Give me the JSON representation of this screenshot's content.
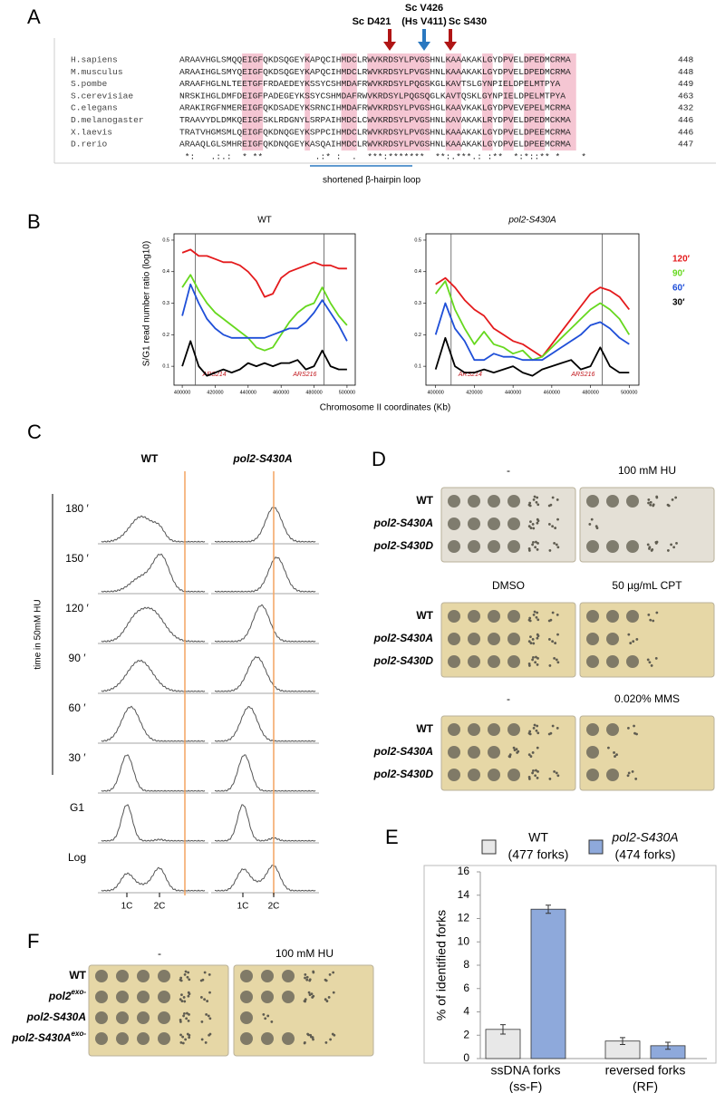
{
  "panel_a": {
    "label": "A",
    "annotations": [
      {
        "text": "Sc D421"
      },
      {
        "lines": [
          "Sc V426",
          "(Hs V411)"
        ]
      },
      {
        "text": "Sc S430"
      }
    ],
    "alignment": [
      {
        "species": "H.sapiens",
        "sequence": "ARAAVHGLSMQQEIGFQKDSQGEYKAPQCIHMDCLRWVKRDSYLPVGSHNLKAAAKAKLGYDPVELDPEDMCRMA",
        "end": 448
      },
      {
        "species": "M.musculus",
        "sequence": "ARAAIHGLSMYQEIGFQKDSQGEYKAPQCIHMDCLRWVKRDSYLPVGSHNLKAAAKAKLGYDPVELDPEDMCRMA",
        "end": 448
      },
      {
        "species": "S.pombe",
        "sequence": "ARAAFHGLNLTEETGFFRDAEDEYKSSYCSHMDAFRWVKRDSYLPQGSKGLKAVTSLGYNPIELDPELMTPYA",
        "end": 449
      },
      {
        "species": "S.cerevisiae",
        "sequence": "NRSKIHGLDMFDEIGFPADEGEYKSSYCSHMDAFRWVKRDSYLPQGSQGLKAVTQSKLGYNPIELDPELMTPYA",
        "end": 463
      },
      {
        "species": "C.elegans",
        "sequence": "ARAKIRGFNMEREIGFQKDSADEYKSRNCIHMDAFRWVKRDSYLPVGSHGLKAAVKAKLGYDPVEVEPELMCRMA",
        "end": 432
      },
      {
        "species": "D.melanogaster",
        "sequence": "TRAAVYDLDMKQEIGFSKLRDGNYLSRPAIHMDCLCWVKRDSYLPVGSHNLKAVAKAKLRYDPVELDPEDMCKMA",
        "end": 446
      },
      {
        "species": "X.laevis",
        "sequence": "TRATVHGMSMLQEIGFQKDNQGEYKSPPCIHMDCLRWVKRDSYLPVGSHNLKAAAKAKLGYDPVELDPEEMCRMA",
        "end": 446
      },
      {
        "species": "D.rerio",
        "sequence": "ARAAQLGLSMHREIGFQKDNQGEYKASQAIHMDCLRWVKRDSYLPVGSHNLKAAAKAKLGYDPVELDPEEMCRMA",
        "end": 447
      }
    ],
    "conservation": " *:   .:.:  * **          .:* :  .  ***:*******  **:.***.: :**  *:*::** *    *",
    "loop_label": "shortened  β-hairpin loop"
  },
  "panel_b": {
    "label": "B",
    "y_label": "S/G1 read number ratio (log10)",
    "x_label": "Chromosome II coordinates (Kb)",
    "x": [
      400000,
      405000,
      410000,
      415000,
      420000,
      425000,
      430000,
      435000,
      440000,
      445000,
      450000,
      455000,
      460000,
      465000,
      470000,
      475000,
      480000,
      485000,
      490000,
      495000,
      500000
    ],
    "xlim": [
      395000,
      505000
    ],
    "xticks": [
      400000,
      420000,
      440000,
      460000,
      480000,
      500000
    ],
    "ylim": [
      0.04,
      0.52
    ],
    "yticks": [
      0.1,
      0.2,
      0.3,
      0.4,
      0.5
    ],
    "origins": [
      {
        "x": 408000,
        "label": "ARS214"
      },
      {
        "x": 486000,
        "label": "ARS216"
      }
    ],
    "legend": [
      {
        "name": "120′",
        "color": "#e41a1c"
      },
      {
        "name": "90′",
        "color": "#66d81e"
      },
      {
        "name": "60′",
        "color": "#1f4fd8"
      },
      {
        "name": "30′",
        "color": "#000000"
      }
    ],
    "charts": [
      {
        "type": "line",
        "title": "WT",
        "series": [
          {
            "values": [
              0.46,
              0.47,
              0.45,
              0.45,
              0.44,
              0.43,
              0.43,
              0.42,
              0.4,
              0.37,
              0.32,
              0.33,
              0.38,
              0.4,
              0.41,
              0.42,
              0.43,
              0.42,
              0.42,
              0.41,
              0.41
            ]
          },
          {
            "values": [
              0.35,
              0.39,
              0.34,
              0.3,
              0.27,
              0.25,
              0.23,
              0.21,
              0.19,
              0.16,
              0.15,
              0.16,
              0.2,
              0.24,
              0.27,
              0.29,
              0.3,
              0.35,
              0.3,
              0.26,
              0.23
            ]
          },
          {
            "values": [
              0.26,
              0.36,
              0.3,
              0.25,
              0.22,
              0.2,
              0.19,
              0.19,
              0.19,
              0.19,
              0.19,
              0.2,
              0.21,
              0.22,
              0.22,
              0.24,
              0.27,
              0.31,
              0.27,
              0.23,
              0.18
            ]
          },
          {
            "values": [
              0.1,
              0.18,
              0.1,
              0.07,
              0.08,
              0.09,
              0.08,
              0.09,
              0.11,
              0.1,
              0.11,
              0.1,
              0.11,
              0.11,
              0.12,
              0.09,
              0.1,
              0.15,
              0.1,
              0.09,
              0.09
            ]
          }
        ]
      },
      {
        "type": "line",
        "title": "pol2-S430A",
        "series": [
          {
            "values": [
              0.36,
              0.38,
              0.35,
              0.31,
              0.28,
              0.26,
              0.22,
              0.2,
              0.18,
              0.17,
              0.15,
              0.13,
              0.17,
              0.21,
              0.25,
              0.29,
              0.33,
              0.35,
              0.34,
              0.32,
              0.28
            ]
          },
          {
            "values": [
              0.33,
              0.37,
              0.28,
              0.22,
              0.17,
              0.21,
              0.17,
              0.16,
              0.14,
              0.15,
              0.12,
              0.13,
              0.16,
              0.19,
              0.22,
              0.25,
              0.28,
              0.3,
              0.28,
              0.25,
              0.2
            ]
          },
          {
            "values": [
              0.2,
              0.3,
              0.22,
              0.18,
              0.12,
              0.12,
              0.14,
              0.13,
              0.13,
              0.12,
              0.12,
              0.12,
              0.14,
              0.16,
              0.18,
              0.2,
              0.23,
              0.24,
              0.22,
              0.19,
              0.17
            ]
          },
          {
            "values": [
              0.09,
              0.19,
              0.1,
              0.08,
              0.08,
              0.09,
              0.08,
              0.09,
              0.1,
              0.08,
              0.07,
              0.09,
              0.1,
              0.11,
              0.12,
              0.09,
              0.1,
              0.16,
              0.1,
              0.08,
              0.08
            ]
          }
        ]
      }
    ]
  },
  "panel_c": {
    "label": "C",
    "columns": [
      "WT",
      "pol2-S430A"
    ],
    "rows": [
      "180 ′",
      "150 ′",
      "120 ′",
      "90 ′",
      "60 ′",
      "30 ′",
      "G1",
      "Log"
    ],
    "axis_label": "time in 50mM HU",
    "dna_content": [
      "1C",
      "2C"
    ]
  },
  "panel_d": {
    "label": "D",
    "strains": [
      "WT",
      "pol2-S430A",
      "pol2-S430D"
    ],
    "conditions": [
      [
        "-",
        "100 mM HU"
      ],
      [
        "DMSO",
        "50 µg/mL CPT"
      ],
      [
        "-",
        "0.020% MMS"
      ]
    ]
  },
  "panel_e": {
    "label": "E",
    "type": "bar",
    "y_label": "% of identified forks",
    "categories": [
      [
        "ssDNA forks",
        "(ss-F)"
      ],
      [
        "reversed forks",
        "(RF)"
      ]
    ],
    "series": [
      {
        "name": "WT",
        "subtitle": "(477 forks)",
        "color": "#e8e8e8",
        "values": [
          2.5,
          1.5
        ],
        "errors": [
          0.4,
          0.3
        ]
      },
      {
        "name": "pol2-S430A",
        "subtitle": "(474 forks)",
        "color": "#8ea9db",
        "values": [
          12.8,
          1.1
        ],
        "errors": [
          0.35,
          0.3
        ]
      }
    ],
    "ylim": [
      0,
      16
    ],
    "yticks": [
      0,
      2,
      4,
      6,
      8,
      10,
      12,
      14,
      16
    ]
  },
  "panel_f": {
    "label": "F",
    "strains": [
      {
        "text": "WT"
      },
      {
        "text": "pol2",
        "superscript": "exo-"
      },
      {
        "text": "pol2-S430A"
      },
      {
        "text": "pol2-S430A",
        "superscript": "exo-"
      }
    ],
    "conditions": [
      "-",
      "100 mM HU"
    ]
  }
}
